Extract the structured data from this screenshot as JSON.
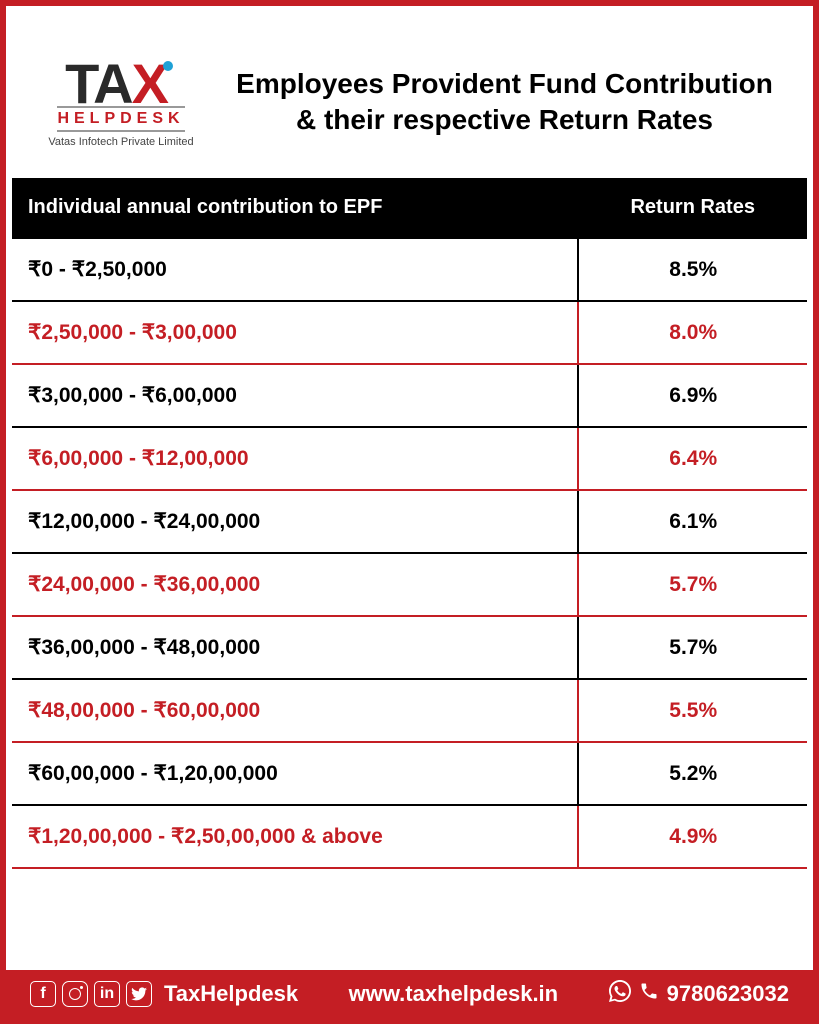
{
  "logo": {
    "primary_text": "TA",
    "accent_char": "X",
    "helpdesk_text": "HELPDESK",
    "company_subtext": "Vatas Infotech Private Limited"
  },
  "title": "Employees Provident Fund Contribution & their respective Return Rates",
  "table": {
    "columns": [
      "Individual annual contribution to EPF",
      "Return Rates"
    ],
    "rows": [
      {
        "range": "₹0 -  ₹2,50,000",
        "rate": "8.5%",
        "alt": false
      },
      {
        "range": "₹2,50,000 - ₹3,00,000",
        "rate": "8.0%",
        "alt": true
      },
      {
        "range": "₹3,00,000 - ₹6,00,000",
        "rate": "6.9%",
        "alt": false
      },
      {
        "range": "₹6,00,000 - ₹12,00,000",
        "rate": "6.4%",
        "alt": true
      },
      {
        "range": "₹12,00,000 - ₹24,00,000",
        "rate": "6.1%",
        "alt": false
      },
      {
        "range": "₹24,00,000 - ₹36,00,000",
        "rate": "5.7%",
        "alt": true
      },
      {
        "range": "₹36,00,000 - ₹48,00,000",
        "rate": "5.7%",
        "alt": false
      },
      {
        "range": "₹48,00,000 - ₹60,00,000",
        "rate": "5.5%",
        "alt": true
      },
      {
        "range": "₹60,00,000 - ₹1,20,00,000",
        "rate": "5.2%",
        "alt": false
      },
      {
        "range": "₹1,20,00,000 - ₹2,50,00,000 & above",
        "rate": "4.9%",
        "alt": true
      }
    ]
  },
  "footer": {
    "handle": "TaxHelpdesk",
    "website": "www.taxhelpdesk.in",
    "phone": "9780623032"
  },
  "colors": {
    "brand_red": "#c41e24",
    "brand_teal": "#1ea1d6",
    "black": "#000000",
    "white": "#ffffff"
  }
}
